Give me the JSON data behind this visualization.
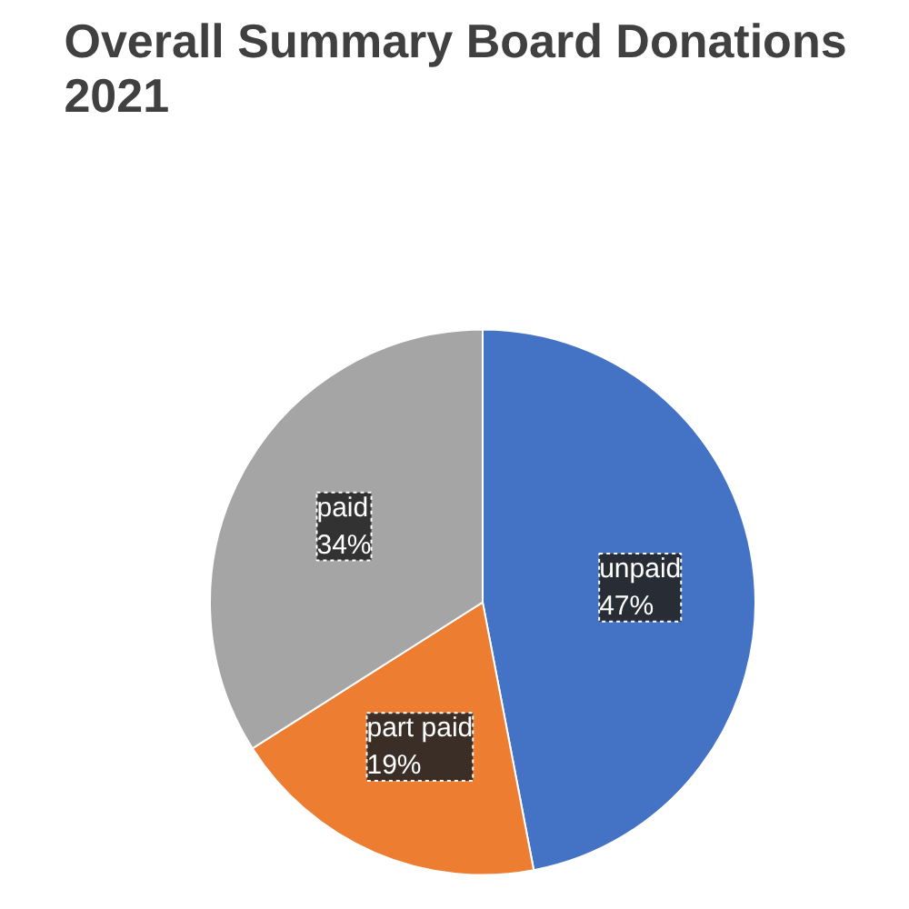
{
  "chart_data": {
    "type": "pie",
    "title": "Overall Summary Board Donations\n2021",
    "categories": [
      "unpaid",
      "part paid",
      "paid"
    ],
    "values": [
      47,
      19,
      34
    ],
    "colors": [
      "#4472c4",
      "#ed7d31",
      "#a5a5a5"
    ],
    "value_labels": [
      "47%",
      "19%",
      "34%"
    ]
  }
}
